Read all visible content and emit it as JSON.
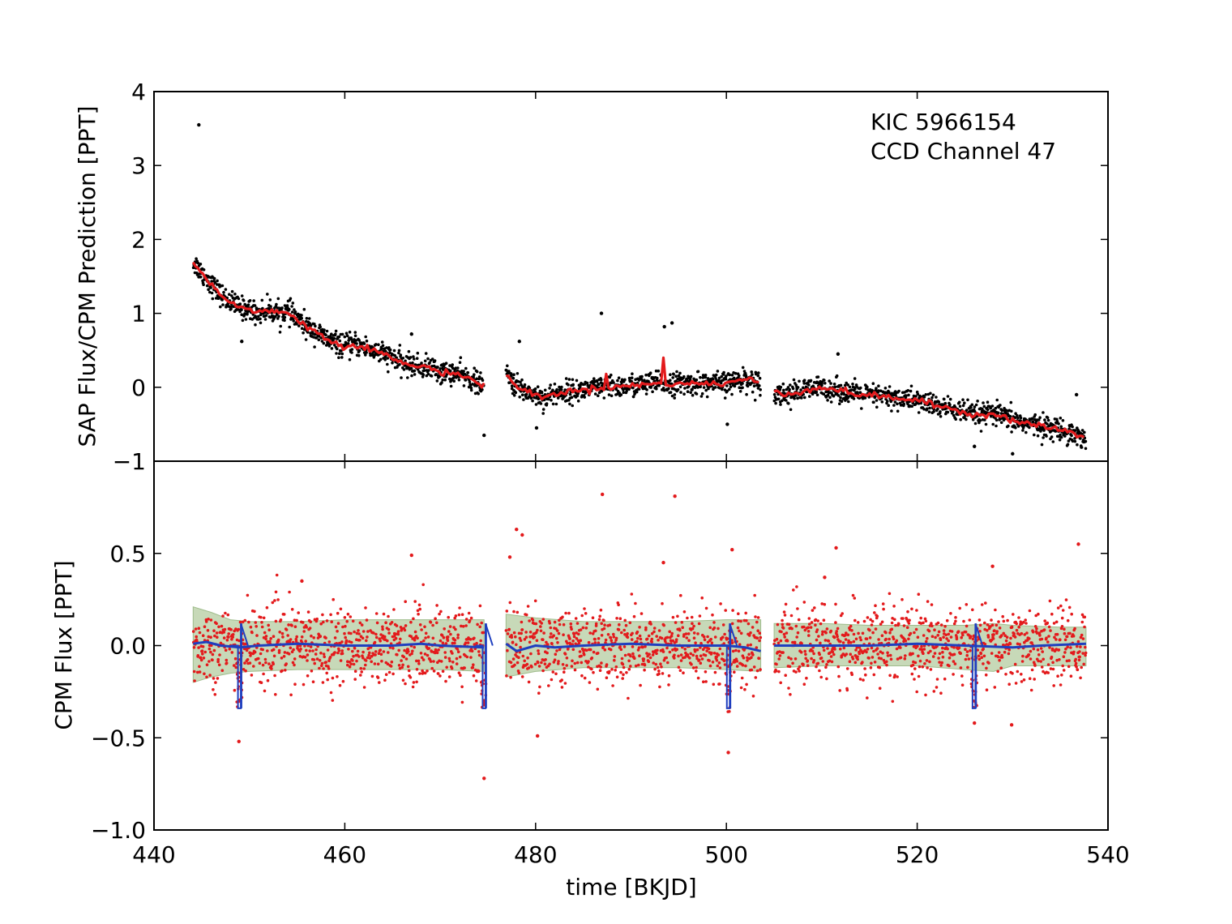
{
  "chart_data": [
    {
      "type": "scatter",
      "panel": "top",
      "ylabel": "SAP Flux/CPM Prediction [PPT]",
      "xlim": [
        440,
        540
      ],
      "ylim": [
        -1,
        4
      ],
      "yticks": [
        -1,
        0,
        1,
        2,
        3,
        4
      ],
      "ytick_labels": [
        "−1",
        "0",
        "1",
        "2",
        "3",
        "4"
      ],
      "annotation": [
        "KIC 5966154",
        "CCD Channel 47"
      ],
      "segments": [
        [
          444.1,
          474.6
        ],
        [
          476.9,
          503.6
        ],
        [
          505.0,
          537.7
        ]
      ],
      "series": [
        {
          "kind": "points",
          "color": "#000000",
          "trend": [
            [
              444.1,
              1.7
            ],
            [
              445,
              1.55
            ],
            [
              446,
              1.4
            ],
            [
              447,
              1.25
            ],
            [
              448,
              1.15
            ],
            [
              449,
              1.08
            ],
            [
              450,
              1.05
            ],
            [
              451,
              1.0
            ],
            [
              452,
              1.05
            ],
            [
              453,
              1.0
            ],
            [
              454,
              1.03
            ],
            [
              455,
              0.92
            ],
            [
              456,
              0.82
            ],
            [
              457,
              0.75
            ],
            [
              458,
              0.65
            ],
            [
              459,
              0.6
            ],
            [
              460,
              0.55
            ],
            [
              461,
              0.58
            ],
            [
              462,
              0.55
            ],
            [
              463,
              0.5
            ],
            [
              464,
              0.45
            ],
            [
              465,
              0.4
            ],
            [
              466,
              0.32
            ],
            [
              467,
              0.3
            ],
            [
              468,
              0.27
            ],
            [
              469,
              0.27
            ],
            [
              470,
              0.2
            ],
            [
              471,
              0.2
            ],
            [
              472,
              0.17
            ],
            [
              473,
              0.13
            ],
            [
              474.6,
              0.0
            ],
            [
              476.9,
              0.2
            ],
            [
              478,
              0.0
            ],
            [
              479,
              -0.05
            ],
            [
              480,
              -0.1
            ],
            [
              481,
              -0.15
            ],
            [
              482,
              -0.08
            ],
            [
              484,
              -0.05
            ],
            [
              486,
              -0.02
            ],
            [
              488,
              0.0
            ],
            [
              490,
              0.02
            ],
            [
              492,
              0.05
            ],
            [
              494,
              0.05
            ],
            [
              496,
              0.05
            ],
            [
              498,
              0.05
            ],
            [
              500,
              0.05
            ],
            [
              502,
              0.12
            ],
            [
              503.6,
              0.05
            ],
            [
              505.0,
              -0.05
            ],
            [
              506,
              -0.1
            ],
            [
              508,
              -0.05
            ],
            [
              510,
              0.0
            ],
            [
              512,
              -0.05
            ],
            [
              514,
              -0.1
            ],
            [
              516,
              -0.12
            ],
            [
              518,
              -0.15
            ],
            [
              520,
              -0.18
            ],
            [
              522,
              -0.25
            ],
            [
              524,
              -0.3
            ],
            [
              526,
              -0.38
            ],
            [
              528,
              -0.35
            ],
            [
              530,
              -0.45
            ],
            [
              532,
              -0.5
            ],
            [
              534,
              -0.55
            ],
            [
              536,
              -0.6
            ],
            [
              537.7,
              -0.7
            ]
          ],
          "scatter_sd": 0.075,
          "count": 2300,
          "outliers": [
            [
              444.7,
              3.55
            ],
            [
              486.9,
              1.0
            ],
            [
              493.5,
              0.82
            ],
            [
              494.3,
              0.87
            ],
            [
              474.6,
              -0.65
            ],
            [
              480.1,
              -0.55
            ],
            [
              500.1,
              -0.5
            ],
            [
              526.0,
              -0.8
            ],
            [
              530.0,
              -0.9
            ],
            [
              449.2,
              0.62
            ],
            [
              467.0,
              0.72
            ],
            [
              478.3,
              0.62
            ],
            [
              511.7,
              0.45
            ],
            [
              536.7,
              -0.1
            ]
          ]
        },
        {
          "kind": "line",
          "color": "#e31a1c",
          "follows": "trend",
          "spikes": [
            [
              487.4,
              0.18
            ],
            [
              493.3,
              0.4
            ]
          ]
        }
      ]
    },
    {
      "type": "scatter",
      "panel": "bottom",
      "xlabel": "time [BKJD]",
      "ylabel": "CPM Flux [PPT]",
      "xlim": [
        440,
        540
      ],
      "ylim": [
        -1.0,
        1.0
      ],
      "xticks": [
        440,
        460,
        480,
        500,
        520,
        540
      ],
      "xtick_labels": [
        "440",
        "460",
        "480",
        "500",
        "520",
        "540"
      ],
      "yticks": [
        -1.0,
        -0.5,
        0.0,
        0.5
      ],
      "ytick_labels": [
        "−1.0",
        "−0.5",
        "0.0",
        "0.5"
      ],
      "segments": [
        [
          444.1,
          474.6
        ],
        [
          476.9,
          503.6
        ],
        [
          505.0,
          537.7
        ]
      ],
      "series": [
        {
          "kind": "band",
          "color": "#c7d9b8",
          "upper": [
            [
              444.1,
              0.21
            ],
            [
              446,
              0.18
            ],
            [
              448,
              0.14
            ],
            [
              450,
              0.13
            ],
            [
              455,
              0.13
            ],
            [
              460,
              0.14
            ],
            [
              465,
              0.14
            ],
            [
              470,
              0.14
            ],
            [
              474.6,
              0.14
            ],
            [
              476.9,
              0.17
            ],
            [
              480,
              0.15
            ],
            [
              485,
              0.13
            ],
            [
              490,
              0.13
            ],
            [
              495,
              0.13
            ],
            [
              500,
              0.14
            ],
            [
              503.6,
              0.14
            ],
            [
              505.0,
              0.12
            ],
            [
              510,
              0.12
            ],
            [
              515,
              0.11
            ],
            [
              520,
              0.11
            ],
            [
              525,
              0.11
            ],
            [
              528,
              0.12
            ],
            [
              530,
              0.11
            ],
            [
              535,
              0.1
            ],
            [
              537.7,
              0.1
            ]
          ],
          "lower": [
            [
              444.1,
              -0.2
            ],
            [
              446,
              -0.17
            ],
            [
              448,
              -0.15
            ],
            [
              450,
              -0.14
            ],
            [
              455,
              -0.13
            ],
            [
              460,
              -0.13
            ],
            [
              465,
              -0.13
            ],
            [
              470,
              -0.13
            ],
            [
              474.6,
              -0.14
            ],
            [
              476.9,
              -0.17
            ],
            [
              480,
              -0.14
            ],
            [
              485,
              -0.12
            ],
            [
              490,
              -0.12
            ],
            [
              495,
              -0.12
            ],
            [
              500,
              -0.13
            ],
            [
              503.6,
              -0.14
            ],
            [
              505.0,
              -0.12
            ],
            [
              510,
              -0.11
            ],
            [
              515,
              -0.11
            ],
            [
              520,
              -0.11
            ],
            [
              525,
              -0.13
            ],
            [
              528,
              -0.14
            ],
            [
              530,
              -0.11
            ],
            [
              535,
              -0.11
            ],
            [
              537.7,
              -0.11
            ]
          ]
        },
        {
          "kind": "points",
          "color": "#e31a1c",
          "scatter_sd": 0.1,
          "count": 2300,
          "outliers": [
            [
              474.6,
              -0.72
            ],
            [
              500.2,
              -0.58
            ],
            [
              480.2,
              -0.49
            ],
            [
              448.9,
              -0.52
            ],
            [
              526.0,
              -0.42
            ],
            [
              529.9,
              -0.43
            ],
            [
              487.0,
              0.82
            ],
            [
              494.6,
              0.81
            ],
            [
              478.0,
              0.63
            ],
            [
              478.6,
              0.6
            ],
            [
              536.9,
              0.55
            ],
            [
              467.0,
              0.49
            ],
            [
              500.6,
              0.52
            ],
            [
              511.5,
              0.53
            ],
            [
              477.3,
              0.48
            ],
            [
              493.4,
              0.45
            ],
            [
              510.3,
              0.37
            ],
            [
              455.5,
              0.35
            ],
            [
              527.9,
              0.43
            ]
          ]
        },
        {
          "kind": "line",
          "color": "#1f3fbf",
          "values": [
            [
              444.1,
              0.01
            ],
            [
              445.5,
              0.02
            ],
            [
              447,
              0.0
            ],
            [
              449,
              -0.01
            ],
            [
              451,
              0.0
            ],
            [
              455,
              0.01
            ],
            [
              460,
              0.0
            ],
            [
              465,
              0.0
            ],
            [
              468,
              0.01
            ],
            [
              470,
              0.0
            ],
            [
              474.6,
              -0.01
            ],
            [
              476.9,
              0.01
            ],
            [
              478,
              -0.03
            ],
            [
              480,
              0.0
            ],
            [
              482,
              -0.01
            ],
            [
              485,
              0.0
            ],
            [
              490,
              0.01
            ],
            [
              495,
              0.0
            ],
            [
              500,
              0.0
            ],
            [
              502,
              -0.01
            ],
            [
              503.6,
              -0.03
            ],
            [
              505.0,
              0.0
            ],
            [
              510,
              0.0
            ],
            [
              515,
              0.0
            ],
            [
              520,
              0.01
            ],
            [
              525,
              0.0
            ],
            [
              530,
              -0.01
            ],
            [
              533,
              0.0
            ],
            [
              537.7,
              0.01
            ]
          ]
        },
        {
          "kind": "events",
          "color": "#1f3fbf",
          "x": [
            448.95,
            474.6,
            500.2,
            525.95
          ],
          "depth": -0.34,
          "top": 0.12
        }
      ]
    }
  ]
}
